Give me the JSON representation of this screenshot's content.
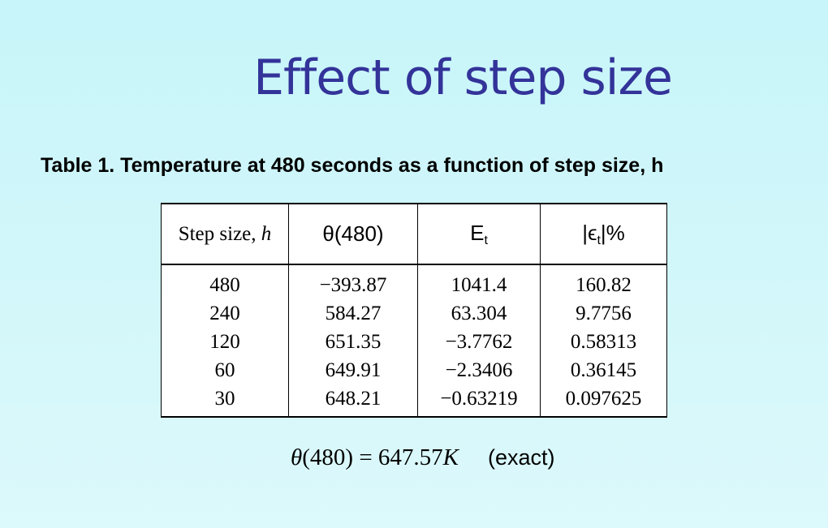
{
  "slide": {
    "title": "Effect of step size",
    "caption": "Table 1.  Temperature at 480 seconds as a function of step size, h"
  },
  "table": {
    "headers": {
      "step": "Step size, ",
      "step_var": "h",
      "theta": "θ(480)",
      "Et_main": "E",
      "Et_sub": "t",
      "eps_pre": "|ϵ",
      "eps_sub": "t",
      "eps_post": "|%"
    },
    "rows": [
      [
        "480",
        "−393.87",
        "1041.4",
        "160.82"
      ],
      [
        "240",
        "584.27",
        "63.304",
        "9.7756"
      ],
      [
        "120",
        "651.35",
        "−3.7762",
        "0.58313"
      ],
      [
        "60",
        "649.91",
        "−2.3406",
        "0.36145"
      ],
      [
        "30",
        "648.21",
        "−0.63219",
        "0.097625"
      ]
    ]
  },
  "exact": {
    "theta_symbol": "θ",
    "arg": "(480) = 647.57",
    "unit": "K",
    "note": "(exact)"
  }
}
